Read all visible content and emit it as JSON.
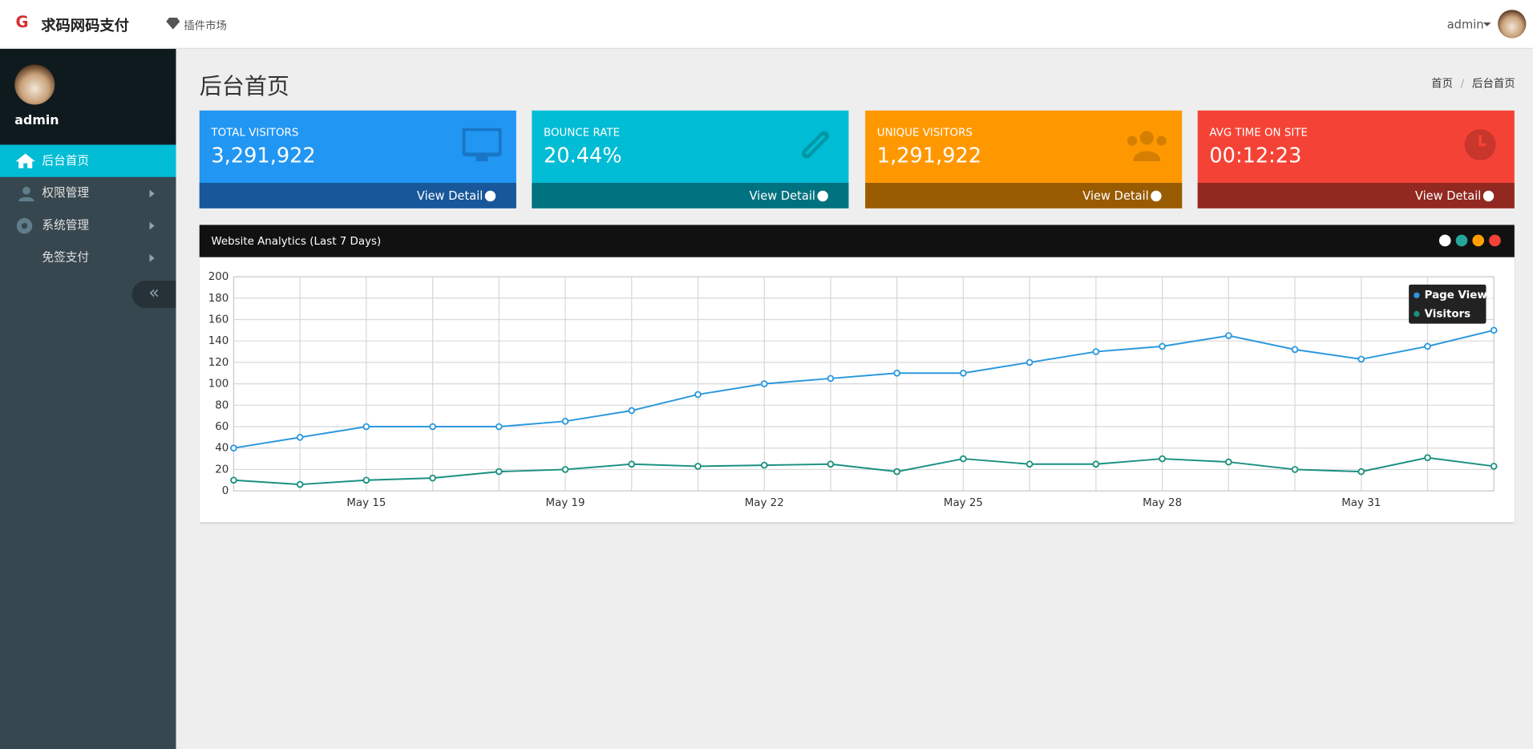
{
  "header": {
    "brand": "求码网码支付",
    "nav": "插件市场",
    "user": "admin"
  },
  "sidebar": {
    "user": "admin",
    "menu": [
      "后台首页",
      "权限管理",
      "系统管理",
      "免签支付"
    ]
  },
  "page": {
    "title": "后台首页",
    "breadcrumb": [
      "首页",
      "后台首页"
    ]
  },
  "cards": [
    {
      "label": "TOTAL VISITORS",
      "value": "3,291,922",
      "link": "View Detail"
    },
    {
      "label": "BOUNCE RATE",
      "value": "20.44%",
      "link": "View Detail"
    },
    {
      "label": "UNIQUE VISITORS",
      "value": "1,291,922",
      "link": "View Detail"
    },
    {
      "label": "AVG TIME ON SITE",
      "value": "00:12:23",
      "link": "View Detail"
    }
  ],
  "chart_data": {
    "type": "line",
    "title": "Website Analytics (Last 7 Days)",
    "categories": [
      null,
      null,
      "May 15",
      null,
      null,
      "May 19",
      null,
      null,
      "May 22",
      null,
      null,
      "May 25",
      null,
      null,
      "May 28",
      null,
      null,
      "May 31",
      null,
      null
    ],
    "series": [
      {
        "name": "Page Views",
        "color": "#2b98dd",
        "values": [
          40,
          50,
          60,
          60,
          60,
          65,
          75,
          90,
          100,
          105,
          110,
          110,
          120,
          130,
          135,
          145,
          132,
          123,
          135,
          150
        ]
      },
      {
        "name": "Visitors",
        "color": "#1a9080",
        "values": [
          10,
          6,
          10,
          12,
          18,
          20,
          25,
          23,
          24,
          25,
          18,
          30,
          25,
          25,
          30,
          27,
          20,
          18,
          31,
          23
        ]
      }
    ],
    "ylim": [
      0,
      200
    ],
    "yticks": [
      0,
      20,
      40,
      60,
      80,
      100,
      120,
      140,
      160,
      180,
      200
    ],
    "grid": true,
    "legend": "top-right"
  }
}
